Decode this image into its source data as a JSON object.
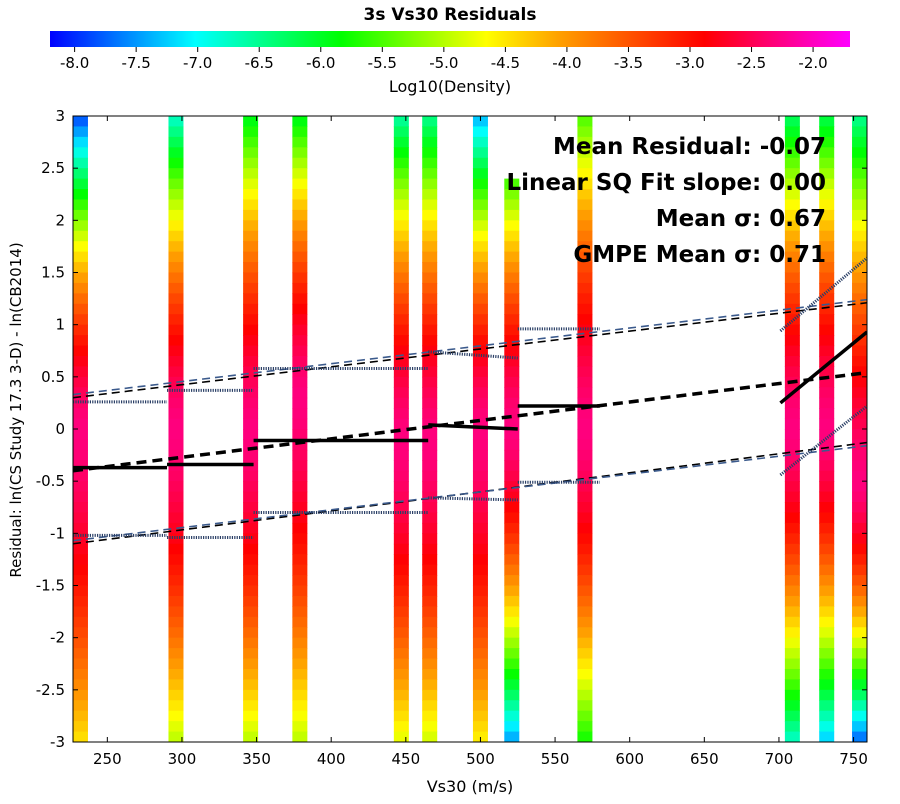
{
  "chart_data": {
    "type": "heatmap",
    "title": "3s Vs30 Residuals",
    "colorbar": {
      "label": "Log10(Density)",
      "range": [
        -8.2,
        -1.7
      ],
      "ticks": [
        "-8.0",
        "-7.5",
        "-7.0",
        "-6.5",
        "-6.0",
        "-5.5",
        "-5.0",
        "-4.5",
        "-4.0",
        "-3.5",
        "-3.0",
        "-2.5",
        "-2.0"
      ],
      "colors": [
        "#0000ff",
        "#0080ff",
        "#00ffff",
        "#00ff80",
        "#00ff00",
        "#80ff00",
        "#ffff00",
        "#ffa000",
        "#ff5000",
        "#ff0000",
        "#ff0080",
        "#ff00ff"
      ]
    },
    "xlabel": "Vs30 (m/s)",
    "ylabel": "Residual: ln(CS Study 17.3 3-D) - ln(CB2014)",
    "xlim": [
      227,
      759
    ],
    "ylim": [
      -3,
      3
    ],
    "xticks": [
      "250",
      "300",
      "350",
      "400",
      "450",
      "500",
      "550",
      "600",
      "650",
      "700",
      "750"
    ],
    "yticks": [
      "3",
      "2.5",
      "2",
      "1.5",
      "1",
      "0.5",
      "0",
      "-0.5",
      "-1",
      "-1.5",
      "-2",
      "-2.5",
      "-3"
    ],
    "density_columns": [
      {
        "x": 232,
        "peak": 0.0,
        "top": -7.9,
        "bottom": -4.5
      },
      {
        "x": 296,
        "peak": 0.0,
        "top": -6.8,
        "bottom": -5.0
      },
      {
        "x": 346,
        "peak": 0.0,
        "top": -6.0,
        "bottom": -5.0
      },
      {
        "x": 379,
        "peak": 0.3,
        "top": -6.0,
        "bottom": -5.0
      },
      {
        "x": 447,
        "peak": -0.1,
        "top": -6.6,
        "bottom": -4.8
      },
      {
        "x": 466,
        "peak": -0.1,
        "top": -6.5,
        "bottom": -4.9
      },
      {
        "x": 500,
        "peak": 0.0,
        "top": -7.4,
        "bottom": -4.6
      },
      {
        "x": 521,
        "peak": 0.0,
        "top": -7.0,
        "bottom": -7.5,
        "ymax": 2.4
      },
      {
        "x": 570,
        "peak": 0.0,
        "top": -5.5,
        "bottom": -5.8
      },
      {
        "x": 709,
        "peak": 0.0,
        "top": -6.3,
        "bottom": -6.8
      },
      {
        "x": 732,
        "peak": 0.0,
        "top": -6.2,
        "bottom": -7.3
      },
      {
        "x": 754,
        "peak": -0.5,
        "top": -6.5,
        "bottom": -7.8
      }
    ],
    "series": [
      {
        "style": "mean-binned",
        "segments": [
          [
            [
              227,
              -0.37
            ],
            [
              290,
              -0.37
            ]
          ],
          [
            [
              290,
              -0.34
            ],
            [
              348,
              -0.34
            ]
          ],
          [
            [
              348,
              -0.11
            ],
            [
              465,
              -0.11
            ]
          ],
          [
            [
              465,
              0.04
            ],
            [
              525,
              0.0
            ]
          ],
          [
            [
              525,
              0.22
            ],
            [
              580,
              0.22
            ]
          ],
          [
            [
              701,
              0.25
            ],
            [
              759,
              0.93
            ]
          ]
        ]
      },
      {
        "style": "linear-fit",
        "points": [
          [
            227,
            -0.4
          ],
          [
            759,
            0.54
          ]
        ]
      },
      {
        "style": "sigma-upper-fit",
        "points": [
          [
            227,
            0.3
          ],
          [
            759,
            1.21
          ]
        ]
      },
      {
        "style": "sigma-lower-fit",
        "points": [
          [
            227,
            -1.1
          ],
          [
            759,
            -0.13
          ]
        ]
      },
      {
        "style": "gmpe-sigma-upper",
        "points": [
          [
            227,
            0.33
          ],
          [
            759,
            1.24
          ]
        ]
      },
      {
        "style": "gmpe-sigma-lower",
        "points": [
          [
            227,
            -1.07
          ],
          [
            759,
            -0.16
          ]
        ]
      },
      {
        "style": "binned-sigma-upper",
        "segments": [
          [
            [
              227,
              0.26
            ],
            [
              290,
              0.26
            ]
          ],
          [
            [
              290,
              0.37
            ],
            [
              348,
              0.37
            ]
          ],
          [
            [
              348,
              0.58
            ],
            [
              465,
              0.58
            ]
          ],
          [
            [
              465,
              0.74
            ],
            [
              525,
              0.68
            ]
          ],
          [
            [
              525,
              0.96
            ],
            [
              580,
              0.96
            ]
          ],
          [
            [
              701,
              0.94
            ],
            [
              759,
              1.64
            ]
          ]
        ]
      },
      {
        "style": "binned-sigma-lower",
        "segments": [
          [
            [
              227,
              -1.02
            ],
            [
              290,
              -1.02
            ]
          ],
          [
            [
              290,
              -1.04
            ],
            [
              348,
              -1.04
            ]
          ],
          [
            [
              348,
              -0.8
            ],
            [
              465,
              -0.8
            ]
          ],
          [
            [
              465,
              -0.66
            ],
            [
              525,
              -0.68
            ]
          ],
          [
            [
              525,
              -0.51
            ],
            [
              580,
              -0.51
            ]
          ],
          [
            [
              701,
              -0.44
            ],
            [
              759,
              0.22
            ]
          ]
        ]
      }
    ],
    "annotations": [
      "Mean Residual: -0.07",
      "Linear SQ Fit slope: 0.00",
      "Mean σ: 0.67",
      "GMPE Mean σ: 0.71"
    ]
  }
}
